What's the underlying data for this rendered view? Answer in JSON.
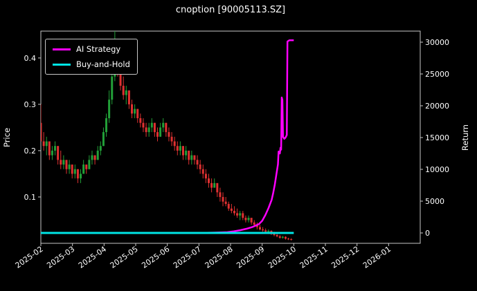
{
  "title": "cnoption [90005113.SZ]",
  "colors": {
    "background": "#000000",
    "text": "#ffffff",
    "axis": "#c8c8c8",
    "candle_up": "#22a038",
    "candle_down": "#e03131",
    "ai_strategy": "#ff00ff",
    "buy_and_hold": "#00e6e6"
  },
  "chart_data": {
    "type": "candlestick",
    "title": "cnoption [90005113.SZ]",
    "x_axis": {
      "unit": "months since 2025-02",
      "range": [
        0,
        12
      ],
      "ticks": [
        0,
        1,
        2,
        3,
        4,
        5,
        6,
        7,
        8,
        9,
        10,
        11
      ],
      "tick_labels": [
        "2025-02",
        "2025-03",
        "2025-04",
        "2025-05",
        "2025-06",
        "2025-07",
        "2025-08",
        "2025-09",
        "2025-10",
        "2025-11",
        "2025-12",
        "2026-01"
      ]
    },
    "left_axis": {
      "label": "Price",
      "ticks": [
        0.1,
        0.2,
        0.3,
        0.4
      ],
      "range": [
        0,
        0.458
      ]
    },
    "right_axis": {
      "label": "Return",
      "ticks": [
        0,
        5000,
        10000,
        15000,
        20000,
        25000,
        30000
      ],
      "range": [
        -1630,
        31740
      ]
    },
    "legend": {
      "position": "upper-left",
      "entries": [
        {
          "label": "AI Strategy",
          "color": "#ff00ff"
        },
        {
          "label": "Buy-and-Hold",
          "color": "#00e6e6"
        }
      ]
    },
    "grid": false,
    "candles": {
      "columns": [
        "t",
        "open",
        "high",
        "low",
        "close"
      ],
      "rows": [
        [
          0.0,
          0.26,
          0.3,
          0.22,
          0.22
        ],
        [
          0.09,
          0.22,
          0.24,
          0.2,
          0.21
        ],
        [
          0.18,
          0.21,
          0.23,
          0.19,
          0.22
        ],
        [
          0.27,
          0.22,
          0.22,
          0.18,
          0.19
        ],
        [
          0.36,
          0.19,
          0.21,
          0.18,
          0.2
        ],
        [
          0.45,
          0.2,
          0.22,
          0.19,
          0.21
        ],
        [
          0.54,
          0.21,
          0.21,
          0.17,
          0.18
        ],
        [
          0.63,
          0.18,
          0.2,
          0.16,
          0.17
        ],
        [
          0.72,
          0.17,
          0.19,
          0.16,
          0.18
        ],
        [
          0.81,
          0.18,
          0.18,
          0.15,
          0.16
        ],
        [
          0.9,
          0.16,
          0.18,
          0.15,
          0.17
        ],
        [
          0.99,
          0.17,
          0.17,
          0.14,
          0.15
        ],
        [
          1.08,
          0.15,
          0.17,
          0.14,
          0.16
        ],
        [
          1.17,
          0.16,
          0.16,
          0.13,
          0.14
        ],
        [
          1.26,
          0.14,
          0.16,
          0.13,
          0.15
        ],
        [
          1.35,
          0.15,
          0.18,
          0.15,
          0.17
        ],
        [
          1.44,
          0.17,
          0.17,
          0.15,
          0.16
        ],
        [
          1.53,
          0.16,
          0.19,
          0.16,
          0.18
        ],
        [
          1.62,
          0.18,
          0.2,
          0.17,
          0.19
        ],
        [
          1.71,
          0.19,
          0.19,
          0.17,
          0.18
        ],
        [
          1.8,
          0.18,
          0.21,
          0.18,
          0.2
        ],
        [
          1.89,
          0.2,
          0.22,
          0.19,
          0.21
        ],
        [
          1.98,
          0.21,
          0.25,
          0.21,
          0.24
        ],
        [
          2.07,
          0.24,
          0.28,
          0.23,
          0.27
        ],
        [
          2.16,
          0.27,
          0.33,
          0.26,
          0.31
        ],
        [
          2.25,
          0.31,
          0.38,
          0.3,
          0.36
        ],
        [
          2.34,
          0.36,
          0.46,
          0.35,
          0.42
        ],
        [
          2.43,
          0.42,
          0.44,
          0.36,
          0.38
        ],
        [
          2.52,
          0.38,
          0.4,
          0.33,
          0.34
        ],
        [
          2.61,
          0.34,
          0.36,
          0.31,
          0.32
        ],
        [
          2.7,
          0.32,
          0.34,
          0.3,
          0.33
        ],
        [
          2.79,
          0.33,
          0.33,
          0.29,
          0.3
        ],
        [
          2.88,
          0.3,
          0.31,
          0.27,
          0.28
        ],
        [
          2.97,
          0.28,
          0.3,
          0.27,
          0.29
        ],
        [
          3.06,
          0.29,
          0.29,
          0.26,
          0.27
        ],
        [
          3.15,
          0.27,
          0.28,
          0.25,
          0.26
        ],
        [
          3.24,
          0.26,
          0.27,
          0.24,
          0.25
        ],
        [
          3.33,
          0.25,
          0.26,
          0.23,
          0.24
        ],
        [
          3.42,
          0.24,
          0.26,
          0.23,
          0.25
        ],
        [
          3.51,
          0.25,
          0.27,
          0.24,
          0.26
        ],
        [
          3.6,
          0.26,
          0.26,
          0.23,
          0.24
        ],
        [
          3.69,
          0.24,
          0.25,
          0.22,
          0.23
        ],
        [
          3.78,
          0.23,
          0.26,
          0.23,
          0.25
        ],
        [
          3.87,
          0.25,
          0.27,
          0.24,
          0.26
        ],
        [
          3.96,
          0.26,
          0.26,
          0.23,
          0.24
        ],
        [
          4.05,
          0.24,
          0.25,
          0.22,
          0.23
        ],
        [
          4.14,
          0.23,
          0.24,
          0.21,
          0.22
        ],
        [
          4.23,
          0.22,
          0.23,
          0.2,
          0.21
        ],
        [
          4.32,
          0.21,
          0.22,
          0.19,
          0.2
        ],
        [
          4.41,
          0.2,
          0.22,
          0.19,
          0.21
        ],
        [
          4.5,
          0.21,
          0.21,
          0.18,
          0.19
        ],
        [
          4.59,
          0.19,
          0.21,
          0.18,
          0.2
        ],
        [
          4.68,
          0.2,
          0.2,
          0.17,
          0.18
        ],
        [
          4.77,
          0.18,
          0.2,
          0.17,
          0.19
        ],
        [
          4.86,
          0.19,
          0.19,
          0.17,
          0.18
        ],
        [
          4.95,
          0.18,
          0.19,
          0.16,
          0.17
        ],
        [
          5.04,
          0.17,
          0.18,
          0.15,
          0.16
        ],
        [
          5.13,
          0.16,
          0.17,
          0.14,
          0.15
        ],
        [
          5.22,
          0.15,
          0.16,
          0.13,
          0.14
        ],
        [
          5.31,
          0.14,
          0.15,
          0.12,
          0.13
        ],
        [
          5.4,
          0.13,
          0.14,
          0.11,
          0.12
        ],
        [
          5.49,
          0.12,
          0.14,
          0.12,
          0.13
        ],
        [
          5.58,
          0.13,
          0.13,
          0.1,
          0.11
        ],
        [
          5.67,
          0.11,
          0.12,
          0.09,
          0.1
        ],
        [
          5.76,
          0.1,
          0.11,
          0.08,
          0.09
        ],
        [
          5.85,
          0.09,
          0.1,
          0.08,
          0.085
        ],
        [
          5.94,
          0.085,
          0.09,
          0.07,
          0.075
        ],
        [
          6.03,
          0.075,
          0.085,
          0.065,
          0.07
        ],
        [
          6.12,
          0.07,
          0.08,
          0.06,
          0.065
        ],
        [
          6.21,
          0.065,
          0.075,
          0.055,
          0.06
        ],
        [
          6.3,
          0.06,
          0.07,
          0.05,
          0.065
        ],
        [
          6.39,
          0.065,
          0.07,
          0.05,
          0.055
        ],
        [
          6.48,
          0.055,
          0.06,
          0.045,
          0.05
        ],
        [
          6.57,
          0.05,
          0.06,
          0.045,
          0.055
        ],
        [
          6.66,
          0.055,
          0.055,
          0.04,
          0.045
        ],
        [
          6.75,
          0.045,
          0.05,
          0.035,
          0.04
        ],
        [
          6.84,
          0.04,
          0.045,
          0.03,
          0.035
        ],
        [
          6.93,
          0.035,
          0.04,
          0.028,
          0.03
        ],
        [
          7.02,
          0.03,
          0.035,
          0.025,
          0.028
        ],
        [
          7.11,
          0.028,
          0.032,
          0.022,
          0.025
        ],
        [
          7.2,
          0.025,
          0.03,
          0.02,
          0.027
        ],
        [
          7.29,
          0.027,
          0.028,
          0.018,
          0.02
        ],
        [
          7.38,
          0.02,
          0.025,
          0.015,
          0.018
        ],
        [
          7.47,
          0.018,
          0.022,
          0.013,
          0.015
        ],
        [
          7.56,
          0.015,
          0.018,
          0.01,
          0.012
        ],
        [
          7.65,
          0.012,
          0.016,
          0.01,
          0.014
        ],
        [
          7.74,
          0.014,
          0.015,
          0.008,
          0.01
        ],
        [
          7.83,
          0.01,
          0.012,
          0.007,
          0.009
        ],
        [
          7.92,
          0.009,
          0.011,
          0.006,
          0.008
        ]
      ]
    },
    "series": [
      {
        "name": "AI Strategy",
        "axis": "right",
        "color": "#ff00ff",
        "width": 2.5,
        "points": [
          [
            0,
            0
          ],
          [
            1,
            0
          ],
          [
            2,
            0
          ],
          [
            3,
            0
          ],
          [
            4,
            0
          ],
          [
            5,
            0
          ],
          [
            5.5,
            50
          ],
          [
            5.9,
            120
          ],
          [
            6.1,
            250
          ],
          [
            6.3,
            420
          ],
          [
            6.5,
            650
          ],
          [
            6.7,
            950
          ],
          [
            6.9,
            1400
          ],
          [
            7.0,
            1900
          ],
          [
            7.1,
            2800
          ],
          [
            7.2,
            3900
          ],
          [
            7.3,
            5200
          ],
          [
            7.35,
            6300
          ],
          [
            7.4,
            7600
          ],
          [
            7.45,
            9200
          ],
          [
            7.5,
            10800
          ],
          [
            7.52,
            12800
          ],
          [
            7.56,
            12500
          ],
          [
            7.58,
            13400
          ],
          [
            7.6,
            13100
          ],
          [
            7.62,
            21300
          ],
          [
            7.64,
            20900
          ],
          [
            7.66,
            15100
          ],
          [
            7.7,
            14800
          ],
          [
            7.74,
            15000
          ],
          [
            7.78,
            15400
          ],
          [
            7.8,
            30100
          ],
          [
            7.86,
            30300
          ],
          [
            8.0,
            30300
          ]
        ]
      },
      {
        "name": "Buy-and-Hold",
        "axis": "right",
        "color": "#00e6e6",
        "width": 3,
        "points": [
          [
            0,
            0
          ],
          [
            2,
            0
          ],
          [
            4,
            0
          ],
          [
            6,
            0
          ],
          [
            8,
            0
          ]
        ]
      }
    ]
  }
}
